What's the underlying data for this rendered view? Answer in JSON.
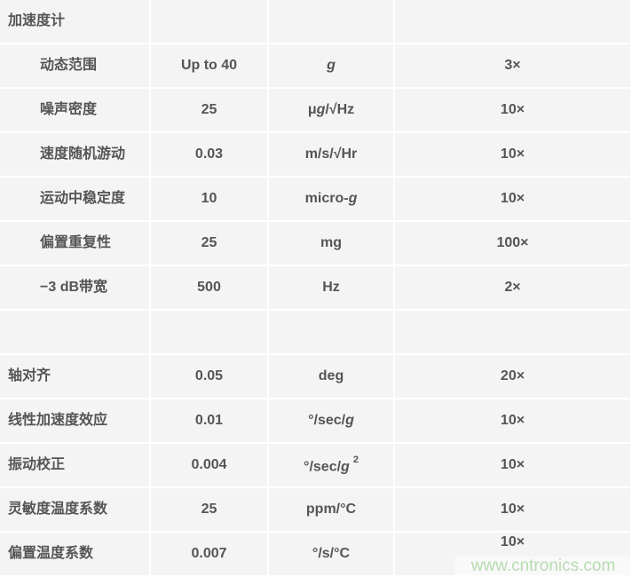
{
  "rows": [
    {
      "label": "加速度计",
      "value": "",
      "unit": {
        "pre": "",
        "it": "",
        "post": "",
        "sup": ""
      },
      "factor": "",
      "sub": false
    },
    {
      "label": "动态范围",
      "value": "Up to 40",
      "unit": {
        "pre": "",
        "it": "g",
        "post": "",
        "sup": ""
      },
      "factor": "3×",
      "sub": true
    },
    {
      "label": "噪声密度",
      "value": "25",
      "unit": {
        "pre": "μ",
        "it": "g",
        "post": "/√Hz",
        "sup": ""
      },
      "factor": "10×",
      "sub": true
    },
    {
      "label": "速度随机游动",
      "value": "0.03",
      "unit": {
        "pre": "m/s/√Hr",
        "it": "",
        "post": "",
        "sup": ""
      },
      "factor": "10×",
      "sub": true
    },
    {
      "label": "运动中稳定度",
      "value": "10",
      "unit": {
        "pre": "micro-",
        "it": "g",
        "post": "",
        "sup": ""
      },
      "factor": "10×",
      "sub": true
    },
    {
      "label": "偏置重复性",
      "value": "25",
      "unit": {
        "pre": "mg",
        "it": "",
        "post": "",
        "sup": ""
      },
      "factor": "100×",
      "sub": true
    },
    {
      "label": "−3 dB带宽",
      "value": "500",
      "unit": {
        "pre": "Hz",
        "it": "",
        "post": "",
        "sup": ""
      },
      "factor": "2×",
      "sub": true
    },
    {
      "label": "",
      "value": "",
      "unit": {
        "pre": "",
        "it": "",
        "post": "",
        "sup": ""
      },
      "factor": "",
      "sub": false
    },
    {
      "label": "轴对齐",
      "value": "0.05",
      "unit": {
        "pre": "deg",
        "it": "",
        "post": "",
        "sup": ""
      },
      "factor": "20×",
      "sub": false
    },
    {
      "label": "线性加速度效应",
      "value": "0.01",
      "unit": {
        "pre": "°/sec/",
        "it": "g",
        "post": "",
        "sup": ""
      },
      "factor": "10×",
      "sub": false
    },
    {
      "label": "振动校正",
      "value": "0.004",
      "unit": {
        "pre": "°/sec/",
        "it": "g",
        "post": "",
        "sup": "2"
      },
      "factor": "10×",
      "sub": false
    },
    {
      "label": "灵敏度温度系数",
      "value": "25",
      "unit": {
        "pre": "ppm/°C",
        "it": "",
        "post": "",
        "sup": ""
      },
      "factor": "10×",
      "sub": false
    },
    {
      "label": "偏置温度系数",
      "value": "0.007",
      "unit": {
        "pre": "°/s/°C",
        "it": "",
        "post": "",
        "sup": ""
      },
      "factor": "10×",
      "sub": false
    }
  ],
  "watermark": "www.cntronics.com",
  "colors": {
    "cell_bg": "#f4f4f4",
    "text": "#555555",
    "watermark": "#b7dcb0"
  }
}
